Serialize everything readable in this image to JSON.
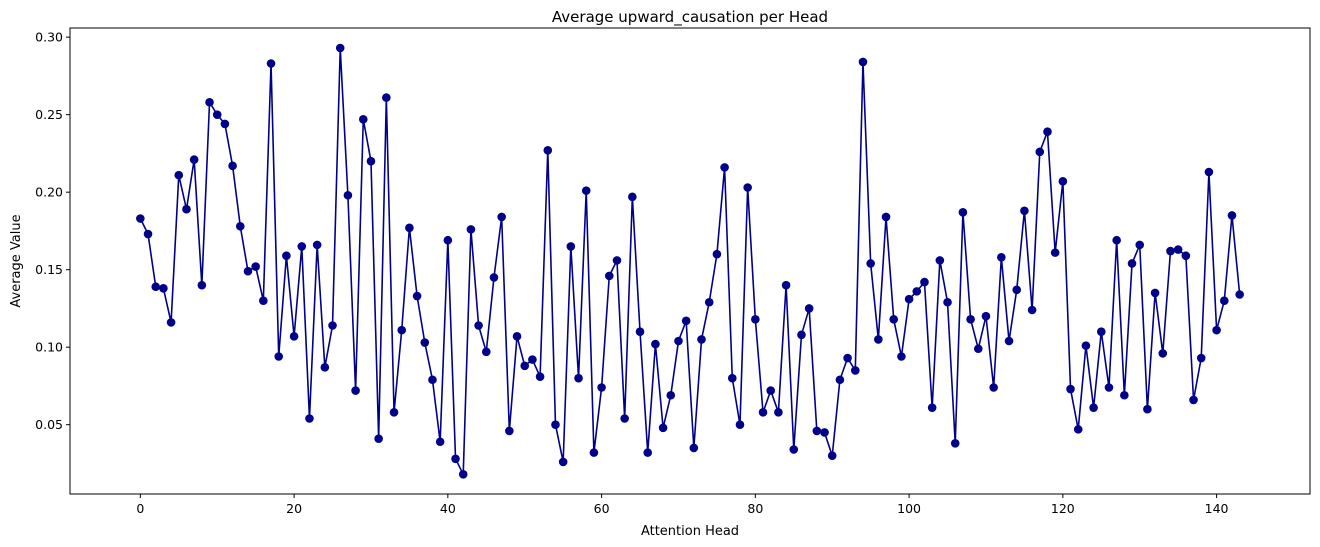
{
  "chart_data": {
    "type": "line",
    "title": "Average upward_causation per Head",
    "xlabel": "Attention Head",
    "ylabel": "Average Value",
    "xlim": [
      -9.15,
      152.15
    ],
    "ylim": [
      0.0053,
      0.3059
    ],
    "xticks": [
      0,
      20,
      40,
      60,
      80,
      100,
      120,
      140
    ],
    "xtick_labels": [
      "0",
      "20",
      "40",
      "60",
      "80",
      "100",
      "120",
      "140"
    ],
    "yticks": [
      0.05,
      0.1,
      0.15,
      0.2,
      0.25,
      0.3
    ],
    "ytick_labels": [
      "0.05",
      "0.10",
      "0.15",
      "0.20",
      "0.25",
      "0.30"
    ],
    "grid": false,
    "color": "#00008b",
    "marker": "circle",
    "series": [
      {
        "x": [
          0,
          1,
          2,
          3,
          4,
          5,
          6,
          7,
          8,
          9,
          10,
          11,
          12,
          13,
          14,
          15,
          16,
          17,
          18,
          19,
          20,
          21,
          22,
          23,
          24,
          25,
          26,
          27,
          28,
          29,
          30,
          31,
          32,
          33,
          34,
          35,
          36,
          37,
          38,
          39,
          40,
          41,
          42,
          43,
          44,
          45,
          46,
          47,
          48,
          49,
          50,
          51,
          52,
          53,
          54,
          55,
          56,
          57,
          58,
          59,
          60,
          61,
          62,
          63,
          64,
          65,
          66,
          67,
          68,
          69,
          70,
          71,
          72,
          73,
          74,
          75,
          76,
          77,
          78,
          79,
          80,
          81,
          82,
          83,
          84,
          85,
          86,
          87,
          88,
          89,
          90,
          91,
          92,
          93,
          94,
          95,
          96,
          97,
          98,
          99,
          100,
          101,
          102,
          103,
          104,
          105,
          106,
          107,
          108,
          109,
          110,
          111,
          112,
          113,
          114,
          115,
          116,
          117,
          118,
          119,
          120,
          121,
          122,
          123,
          124,
          125,
          126,
          127,
          128,
          129,
          130,
          131,
          132,
          133,
          134,
          135,
          136,
          137,
          138,
          139,
          140,
          141,
          142,
          143
        ],
        "values": [
          0.183,
          0.173,
          0.139,
          0.138,
          0.116,
          0.211,
          0.189,
          0.221,
          0.14,
          0.258,
          0.25,
          0.244,
          0.217,
          0.178,
          0.149,
          0.152,
          0.13,
          0.283,
          0.094,
          0.159,
          0.107,
          0.165,
          0.054,
          0.166,
          0.087,
          0.114,
          0.293,
          0.198,
          0.072,
          0.247,
          0.22,
          0.041,
          0.261,
          0.058,
          0.111,
          0.177,
          0.133,
          0.103,
          0.079,
          0.039,
          0.169,
          0.028,
          0.018,
          0.176,
          0.114,
          0.097,
          0.145,
          0.184,
          0.046,
          0.107,
          0.088,
          0.092,
          0.081,
          0.227,
          0.05,
          0.026,
          0.165,
          0.08,
          0.201,
          0.032,
          0.074,
          0.146,
          0.156,
          0.054,
          0.197,
          0.11,
          0.032,
          0.102,
          0.048,
          0.069,
          0.104,
          0.117,
          0.035,
          0.105,
          0.129,
          0.16,
          0.216,
          0.08,
          0.05,
          0.203,
          0.118,
          0.058,
          0.072,
          0.058,
          0.14,
          0.034,
          0.108,
          0.125,
          0.046,
          0.045,
          0.03,
          0.079,
          0.093,
          0.085,
          0.284,
          0.154,
          0.105,
          0.184,
          0.118,
          0.094,
          0.131,
          0.136,
          0.142,
          0.061,
          0.156,
          0.129,
          0.038,
          0.187,
          0.118,
          0.099,
          0.12,
          0.074,
          0.158,
          0.104,
          0.137,
          0.188,
          0.124,
          0.226,
          0.239,
          0.161,
          0.207,
          0.073,
          0.047,
          0.101,
          0.061,
          0.11,
          0.074,
          0.169,
          0.069,
          0.154,
          0.166,
          0.06,
          0.135,
          0.096,
          0.162,
          0.163,
          0.159,
          0.066,
          0.093,
          0.213,
          0.111,
          0.13,
          0.185,
          0.134
        ]
      }
    ]
  }
}
